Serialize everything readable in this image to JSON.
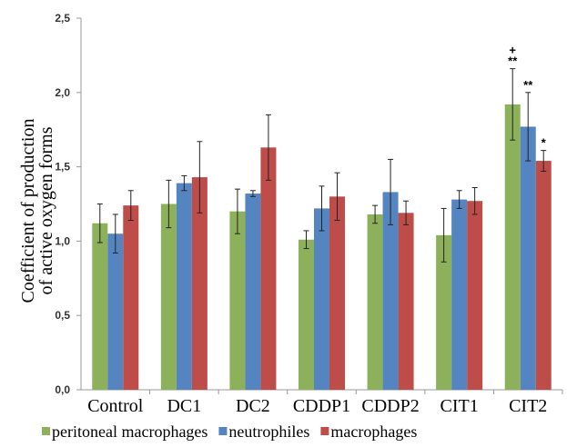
{
  "chart_data": {
    "type": "bar",
    "title": "",
    "ylabel_lines": [
      "Coefficient of production",
      "of active oxygen forms"
    ],
    "xlabel": "",
    "ylim": [
      0,
      2.5
    ],
    "yticks": [
      "0,0",
      "0,5",
      "1,0",
      "1,5",
      "2,0",
      "2,5"
    ],
    "ytick_values": [
      0,
      0.5,
      1.0,
      1.5,
      2.0,
      2.5
    ],
    "categories": [
      "Control",
      "DC1",
      "DC2",
      "CDDP1",
      "CDDP2",
      "CIT1",
      "CIT2"
    ],
    "series": [
      {
        "name": "peritoneal macrophages",
        "color": "#8db15b",
        "values": [
          1.12,
          1.25,
          1.2,
          1.01,
          1.18,
          1.04,
          1.92
        ],
        "errors": [
          0.13,
          0.16,
          0.15,
          0.06,
          0.06,
          0.18,
          0.24
        ]
      },
      {
        "name": "neutrophiles",
        "color": "#5585c0",
        "values": [
          1.05,
          1.39,
          1.32,
          1.22,
          1.33,
          1.28,
          1.77
        ],
        "errors": [
          0.13,
          0.05,
          0.02,
          0.15,
          0.22,
          0.06,
          0.23
        ]
      },
      {
        "name": "macrophages",
        "color": "#be4d49",
        "values": [
          1.24,
          1.43,
          1.63,
          1.3,
          1.19,
          1.27,
          1.54
        ],
        "errors": [
          0.1,
          0.24,
          0.22,
          0.16,
          0.08,
          0.09,
          0.07
        ]
      }
    ],
    "annotations": [
      {
        "category": "CIT2",
        "series": 0,
        "text": "**"
      },
      {
        "category": "CIT2",
        "series": 0,
        "text": "+"
      },
      {
        "category": "CIT2",
        "series": 1,
        "text": "**"
      },
      {
        "category": "CIT2",
        "series": 2,
        "text": "*"
      }
    ],
    "legend_position": "bottom",
    "grid": false
  }
}
